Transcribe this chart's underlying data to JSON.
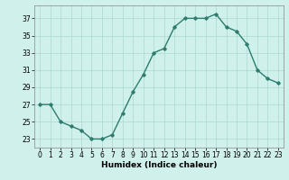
{
  "x": [
    0,
    1,
    2,
    3,
    4,
    5,
    6,
    7,
    8,
    9,
    10,
    11,
    12,
    13,
    14,
    15,
    16,
    17,
    18,
    19,
    20,
    21,
    22,
    23
  ],
  "y": [
    27,
    27,
    25,
    24.5,
    24,
    23,
    23,
    23.5,
    26,
    28.5,
    30.5,
    33,
    33.5,
    36,
    37,
    37,
    37,
    37.5,
    36,
    35.5,
    34,
    31,
    30,
    29.5
  ],
  "line_color": "#2e7d6e",
  "marker": "D",
  "marker_size": 1.8,
  "bg_color": "#cff0eb",
  "grid_color": "#aad8d0",
  "xlabel": "Humidex (Indice chaleur)",
  "xlim": [
    -0.5,
    23.5
  ],
  "ylim": [
    22,
    38.5
  ],
  "yticks": [
    23,
    25,
    27,
    29,
    31,
    33,
    35,
    37
  ],
  "xtick_labels": [
    "0",
    "1",
    "2",
    "3",
    "4",
    "5",
    "6",
    "7",
    "8",
    "9",
    "10",
    "11",
    "12",
    "13",
    "14",
    "15",
    "16",
    "17",
    "18",
    "19",
    "20",
    "21",
    "22",
    "23"
  ],
  "xlabel_fontsize": 6.5,
  "tick_fontsize": 5.5,
  "line_width": 1.0
}
